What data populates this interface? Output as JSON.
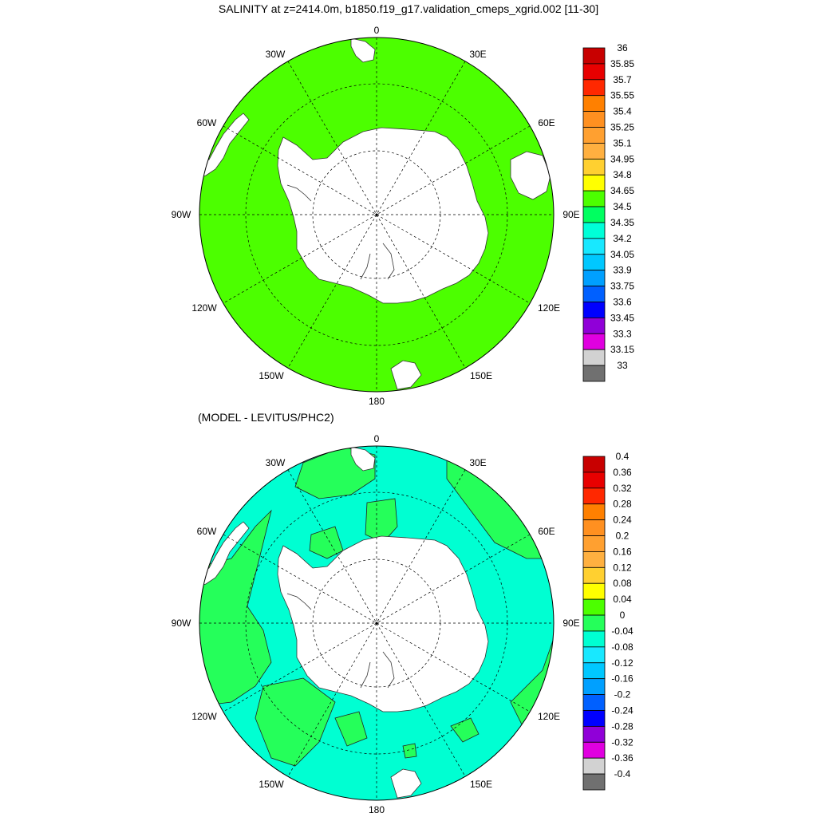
{
  "map_top": {
    "title": "SALINITY at z=2414.0m, b1850.f19_g17.validation_cmeps_xgrid.002 [11-30]",
    "projection": "polar stereographic (south)",
    "ocean_color": "#4cff00",
    "longitude_labels": [
      "0",
      "30E",
      "60E",
      "90E",
      "120E",
      "150E",
      "180",
      "150W",
      "120W",
      "90W",
      "60W",
      "30W"
    ],
    "colorbar": {
      "levels": [
        "36",
        "35.85",
        "35.7",
        "35.55",
        "35.4",
        "35.25",
        "35.1",
        "34.95",
        "34.8",
        "34.65",
        "34.5",
        "34.35",
        "34.2",
        "34.05",
        "33.9",
        "33.75",
        "33.6",
        "33.45",
        "33.3",
        "33.15",
        "33"
      ],
      "colors": [
        "#c80000",
        "#e80000",
        "#ff2800",
        "#ff8000",
        "#ff9020",
        "#ffa030",
        "#ffb040",
        "#ffd030",
        "#ffff00",
        "#4cff00",
        "#00ff60",
        "#00ffd8",
        "#18e8ff",
        "#00c8ff",
        "#00a0ff",
        "#0060ff",
        "#0000ff",
        "#9000d8",
        "#e000e0",
        "#d2d2d2",
        "#707070"
      ]
    }
  },
  "map_bottom": {
    "title": "(MODEL - LEVITUS/PHC2)",
    "projection": "polar stereographic (south)",
    "ocean_color": "#00ffd2",
    "positive_color": "#25ff5a",
    "longitude_labels": [
      "0",
      "30E",
      "60E",
      "90E",
      "120E",
      "150E",
      "180",
      "150W",
      "120W",
      "90W",
      "60W",
      "30W"
    ],
    "colorbar": {
      "levels": [
        "0.4",
        "0.36",
        "0.32",
        "0.28",
        "0.24",
        "0.2",
        "0.16",
        "0.12",
        "0.08",
        "0.04",
        "0",
        "-0.04",
        "-0.08",
        "-0.12",
        "-0.16",
        "-0.2",
        "-0.24",
        "-0.28",
        "-0.32",
        "-0.36",
        "-0.4"
      ],
      "colors": [
        "#c80000",
        "#e80000",
        "#ff2800",
        "#ff8000",
        "#ff9020",
        "#ffa030",
        "#ffb040",
        "#ffd030",
        "#ffff00",
        "#4cff00",
        "#25ff5a",
        "#00ffd2",
        "#18e8ff",
        "#00c8ff",
        "#00a0ff",
        "#0060ff",
        "#0000ff",
        "#9000d8",
        "#e000e0",
        "#d2d2d2",
        "#707070"
      ]
    }
  }
}
